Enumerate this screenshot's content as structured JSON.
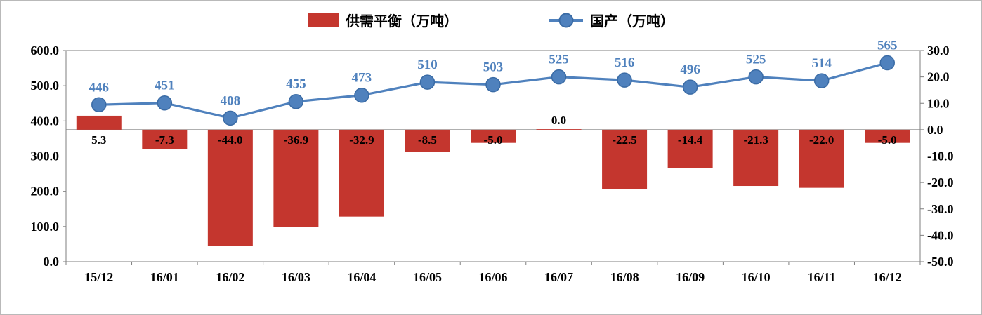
{
  "legend": {
    "bar_label": "供需平衡（万吨）",
    "line_label": "国产（万吨）"
  },
  "colors": {
    "bar": "#C4362E",
    "line": "#4F81BD",
    "line_marker_border": "#3A6BA5",
    "line_label": "#4F81BD",
    "bar_label": "#000000",
    "axis_line": "#7f7f7f",
    "axis_text": "#000000"
  },
  "chart_data": {
    "type": "combo",
    "categories": [
      "15/12",
      "16/01",
      "16/02",
      "16/03",
      "16/04",
      "16/05",
      "16/06",
      "16/07",
      "16/08",
      "16/09",
      "16/10",
      "16/11",
      "16/12"
    ],
    "series": [
      {
        "name": "供需平衡（万吨）",
        "type": "bar",
        "axis": "right",
        "values": [
          5.3,
          -7.3,
          -44.0,
          -36.9,
          -32.9,
          -8.5,
          -5.0,
          0.0,
          -22.5,
          -14.4,
          -21.3,
          -22.0,
          -5.0
        ],
        "labels": [
          "5.3",
          "-7.3",
          "-44.0",
          "-36.9",
          "-32.9",
          "-8.5",
          "-5.0",
          "0.0",
          "-22.5",
          "-14.4",
          "-21.3",
          "-22.0",
          "-5.0"
        ]
      },
      {
        "name": "国产（万吨）",
        "type": "line",
        "axis": "left",
        "values": [
          446,
          451,
          408,
          455,
          473,
          510,
          503,
          525,
          516,
          496,
          525,
          514,
          565
        ],
        "labels": [
          "446",
          "451",
          "408",
          "455",
          "473",
          "510",
          "503",
          "525",
          "516",
          "496",
          "525",
          "514",
          "565"
        ]
      }
    ],
    "left_axis": {
      "min": 0,
      "max": 600,
      "ticks": [
        "600.0",
        "500.0",
        "400.0",
        "300.0",
        "200.0",
        "100.0",
        "0.0"
      ]
    },
    "right_axis": {
      "min": -50,
      "max": 30,
      "ticks": [
        "30.0",
        "20.0",
        "10.0",
        "0.0",
        "-10.0",
        "-20.0",
        "-30.0",
        "-40.0",
        "-50.0"
      ]
    },
    "grid": false,
    "legend_position": "top",
    "title": ""
  }
}
